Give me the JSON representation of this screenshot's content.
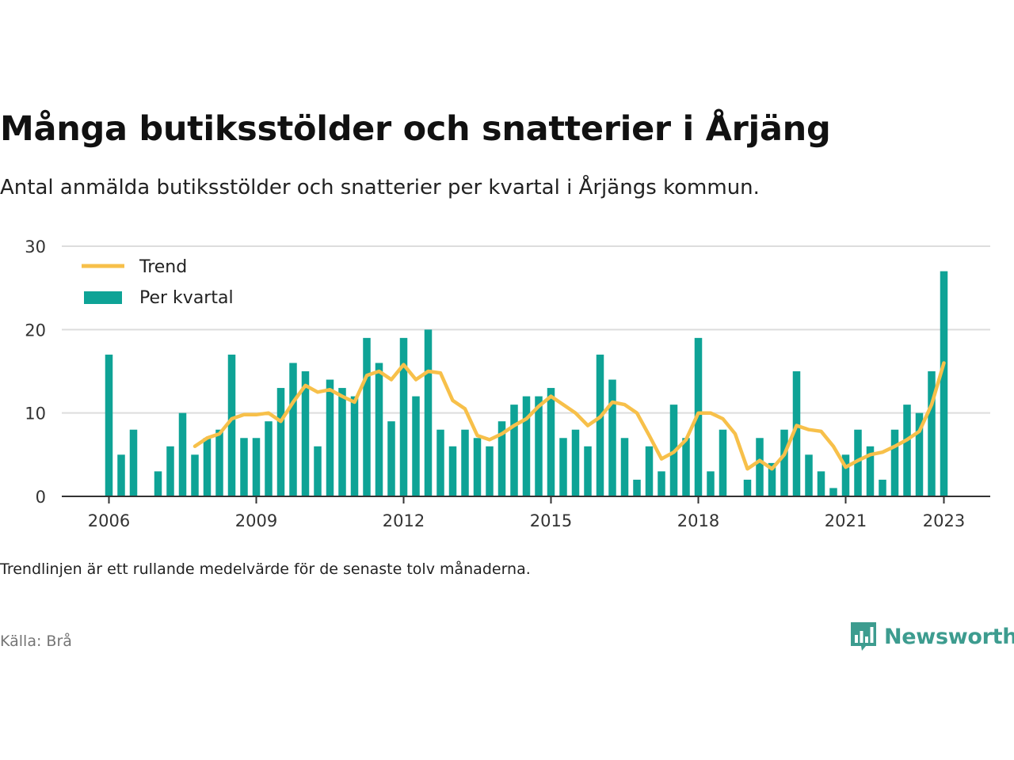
{
  "header": {
    "title": "Många butiksstölder och snatterier i Årjäng",
    "subtitle": "Antal anmälda butiksstölder och snatterier per kvartal i Årjängs kommun."
  },
  "footer": {
    "note": "Trendlinjen är ett rullande medelvärde för de senaste tolv månaderna.",
    "source": "Källa: Brå",
    "brand": "Newsworthy",
    "brand_icon": "bar-chart-speech-bubble-icon"
  },
  "colors": {
    "bar": "#0ea396",
    "trend": "#f7c04a",
    "grid": "#dddddd",
    "axis": "#333333",
    "brand": "#3d9c8f"
  },
  "chart_data": {
    "type": "bar",
    "title": "Många butiksstölder och snatterier i Årjäng",
    "xlabel": "",
    "ylabel": "",
    "ylim": [
      0,
      30
    ],
    "y_ticks": [
      0,
      10,
      20,
      30
    ],
    "x_ticks": [
      "2006",
      "2009",
      "2012",
      "2015",
      "2018",
      "2021",
      "2023"
    ],
    "grid": true,
    "legend_position": "top-left",
    "categories": [
      "2006 Q1",
      "2006 Q2",
      "2006 Q3",
      "2006 Q4",
      "2007 Q1",
      "2007 Q2",
      "2007 Q3",
      "2007 Q4",
      "2008 Q1",
      "2008 Q2",
      "2008 Q3",
      "2008 Q4",
      "2009 Q1",
      "2009 Q2",
      "2009 Q3",
      "2009 Q4",
      "2010 Q1",
      "2010 Q2",
      "2010 Q3",
      "2010 Q4",
      "2011 Q1",
      "2011 Q2",
      "2011 Q3",
      "2011 Q4",
      "2012 Q1",
      "2012 Q2",
      "2012 Q3",
      "2012 Q4",
      "2013 Q1",
      "2013 Q2",
      "2013 Q3",
      "2013 Q4",
      "2014 Q1",
      "2014 Q2",
      "2014 Q3",
      "2014 Q4",
      "2015 Q1",
      "2015 Q2",
      "2015 Q3",
      "2015 Q4",
      "2016 Q1",
      "2016 Q2",
      "2016 Q3",
      "2016 Q4",
      "2017 Q1",
      "2017 Q2",
      "2017 Q3",
      "2017 Q4",
      "2018 Q1",
      "2018 Q2",
      "2018 Q3",
      "2018 Q4",
      "2019 Q1",
      "2019 Q2",
      "2019 Q3",
      "2019 Q4",
      "2020 Q1",
      "2020 Q2",
      "2020 Q3",
      "2020 Q4",
      "2021 Q1",
      "2021 Q2",
      "2021 Q3",
      "2021 Q4",
      "2022 Q1",
      "2022 Q2",
      "2022 Q3",
      "2022 Q4",
      "2023 Q1"
    ],
    "series": [
      {
        "name": "Per kvartal",
        "type": "bar",
        "values": [
          17,
          5,
          8,
          0,
          3,
          6,
          10,
          5,
          7,
          8,
          17,
          7,
          7,
          9,
          13,
          16,
          15,
          6,
          14,
          13,
          12,
          19,
          16,
          9,
          19,
          12,
          20,
          8,
          6,
          8,
          7,
          6,
          9,
          11,
          12,
          12,
          13,
          7,
          8,
          6,
          17,
          14,
          7,
          2,
          6,
          3,
          11,
          7,
          19,
          3,
          8,
          0,
          2,
          7,
          4,
          8,
          15,
          5,
          3,
          1,
          5,
          8,
          6,
          2,
          8,
          11,
          10,
          15,
          27
        ]
      },
      {
        "name": "Trend",
        "type": "line",
        "values": [
          null,
          null,
          null,
          null,
          null,
          null,
          null,
          6.0,
          7.0,
          7.5,
          9.3,
          9.8,
          9.8,
          10.0,
          9.0,
          11.3,
          13.3,
          12.5,
          12.8,
          12.0,
          11.3,
          14.5,
          15.0,
          14.0,
          15.8,
          14.0,
          15.0,
          14.8,
          11.5,
          10.5,
          7.3,
          6.8,
          7.5,
          8.5,
          9.3,
          10.8,
          12.0,
          11.0,
          10.0,
          8.5,
          9.5,
          11.3,
          11.0,
          10.0,
          7.3,
          4.5,
          5.3,
          6.8,
          10.0,
          10.0,
          9.3,
          7.5,
          3.3,
          4.3,
          3.3,
          5.0,
          8.5,
          8.0,
          7.8,
          6.0,
          3.5,
          4.3,
          5.0,
          5.3,
          6.0,
          6.8,
          7.8,
          11.0,
          16.0
        ]
      }
    ]
  }
}
